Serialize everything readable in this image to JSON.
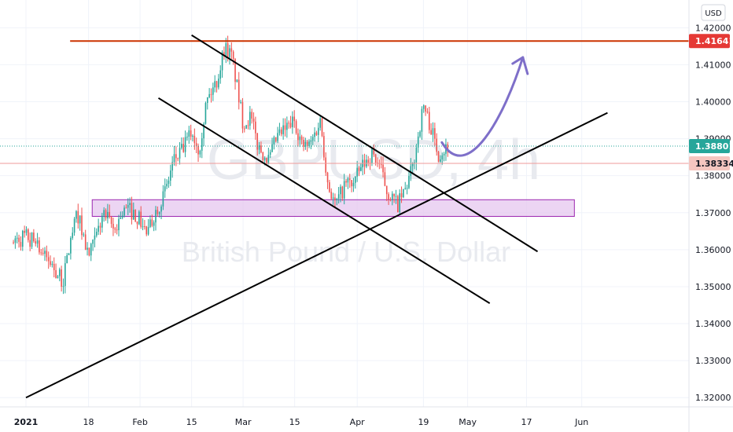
{
  "chart_data": {
    "type": "candlestick",
    "symbol_watermark": "GBPUSD, 4h",
    "description_watermark": "British Pound / U.S. Dollar",
    "currency": "USD",
    "ylim": [
      1.3175,
      1.4275
    ],
    "y_ticks": [
      "1.42000",
      "1.41000",
      "1.40000",
      "1.39000",
      "1.38000",
      "1.37000",
      "1.36000",
      "1.35000",
      "1.34000",
      "1.33000",
      "1.32000"
    ],
    "x_ticks": [
      {
        "label": "2021",
        "bold": true
      },
      {
        "label": "18",
        "bold": false
      },
      {
        "label": "Feb",
        "bold": false
      },
      {
        "label": "15",
        "bold": false
      },
      {
        "label": "Mar",
        "bold": false
      },
      {
        "label": "15",
        "bold": false
      },
      {
        "label": "Apr",
        "bold": false
      },
      {
        "label": "19",
        "bold": false
      },
      {
        "label": "May",
        "bold": false
      },
      {
        "label": "17",
        "bold": false
      },
      {
        "label": "Jun",
        "bold": false
      }
    ],
    "price_anchors": [
      {
        "date": "2021-01-04",
        "price": 1.362
      },
      {
        "date": "2021-01-06",
        "price": 1.358
      },
      {
        "date": "2021-01-08",
        "price": 1.356
      },
      {
        "date": "2021-01-11",
        "price": 1.351
      },
      {
        "date": "2021-01-13",
        "price": 1.362
      },
      {
        "date": "2021-01-15",
        "price": 1.37
      },
      {
        "date": "2021-01-18",
        "price": 1.358
      },
      {
        "date": "2021-01-20",
        "price": 1.363
      },
      {
        "date": "2021-01-22",
        "price": 1.37
      },
      {
        "date": "2021-01-25",
        "price": 1.365
      },
      {
        "date": "2021-01-27",
        "price": 1.37
      },
      {
        "date": "2021-01-29",
        "price": 1.371
      },
      {
        "date": "2021-02-01",
        "price": 1.368
      },
      {
        "date": "2021-02-03",
        "price": 1.364
      },
      {
        "date": "2021-02-05",
        "price": 1.37
      },
      {
        "date": "2021-02-08",
        "price": 1.376
      },
      {
        "date": "2021-02-10",
        "price": 1.384
      },
      {
        "date": "2021-02-12",
        "price": 1.386
      },
      {
        "date": "2021-02-15",
        "price": 1.392
      },
      {
        "date": "2021-02-17",
        "price": 1.387
      },
      {
        "date": "2021-02-19",
        "price": 1.4
      },
      {
        "date": "2021-02-22",
        "price": 1.406
      },
      {
        "date": "2021-02-24",
        "price": 1.415
      },
      {
        "date": "2021-02-26",
        "price": 1.412
      },
      {
        "date": "2021-03-01",
        "price": 1.394
      },
      {
        "date": "2021-03-03",
        "price": 1.396
      },
      {
        "date": "2021-03-05",
        "price": 1.388
      },
      {
        "date": "2021-03-08",
        "price": 1.384
      },
      {
        "date": "2021-03-10",
        "price": 1.39
      },
      {
        "date": "2021-03-12",
        "price": 1.392
      },
      {
        "date": "2021-03-15",
        "price": 1.395
      },
      {
        "date": "2021-03-17",
        "price": 1.388
      },
      {
        "date": "2021-03-19",
        "price": 1.388
      },
      {
        "date": "2021-03-22",
        "price": 1.395
      },
      {
        "date": "2021-03-24",
        "price": 1.378
      },
      {
        "date": "2021-03-26",
        "price": 1.372
      },
      {
        "date": "2021-03-29",
        "price": 1.378
      },
      {
        "date": "2021-03-31",
        "price": 1.378
      },
      {
        "date": "2021-04-02",
        "price": 1.382
      },
      {
        "date": "2021-04-05",
        "price": 1.386
      },
      {
        "date": "2021-04-07",
        "price": 1.383
      },
      {
        "date": "2021-04-09",
        "price": 1.376
      },
      {
        "date": "2021-04-12",
        "price": 1.372
      },
      {
        "date": "2021-04-14",
        "price": 1.376
      },
      {
        "date": "2021-04-16",
        "price": 1.382
      },
      {
        "date": "2021-04-19",
        "price": 1.399
      },
      {
        "date": "2021-04-21",
        "price": 1.393
      },
      {
        "date": "2021-04-23",
        "price": 1.386
      },
      {
        "date": "2021-04-26",
        "price": 1.388
      }
    ],
    "drawings": {
      "resistance_price": 1.41641,
      "demand_zone": {
        "start": "2021-01-19",
        "end": "2021-05-30",
        "top": 1.3735,
        "bottom": 1.369
      },
      "trendlines": [
        {
          "from": {
            "date": "2021-02-15",
            "price": 1.418
          },
          "to": {
            "date": "2021-05-20",
            "price": 1.3595
          }
        },
        {
          "from": {
            "date": "2021-02-06",
            "price": 1.401
          },
          "to": {
            "date": "2021-05-07",
            "price": 1.3455
          }
        },
        {
          "from": {
            "date": "2021-01-01",
            "price": 1.32
          },
          "to": {
            "date": "2021-06-08",
            "price": 1.397
          }
        }
      ],
      "projection": [
        {
          "date": "2021-04-24",
          "price": 1.389
        },
        {
          "date": "2021-05-01",
          "price": 1.3775
        },
        {
          "date": "2021-05-11",
          "price": 1.396
        },
        {
          "date": "2021-05-16",
          "price": 1.412
        }
      ]
    },
    "price_tags": [
      {
        "value": "1.41641",
        "price": 1.41641,
        "color": "#e53935",
        "text_color": "#ffffff",
        "line_color": "#cc3300"
      },
      {
        "value": "1.38801",
        "price": 1.38801,
        "color": "#26a69a",
        "text_color": "#ffffff",
        "line_color": "#26a69a"
      },
      {
        "value": "1.38334",
        "price": 1.38334,
        "color": "#f5c6c0",
        "text_color": "#131722",
        "line_color": "#ef9a9a"
      }
    ],
    "colors": {
      "bull": "#26a69a",
      "bear": "#ef5350",
      "zone_fill": "#e6c7ef",
      "zone_border": "#9c27b0",
      "trendline": "#000000",
      "projection": "#7e6fc9"
    }
  }
}
